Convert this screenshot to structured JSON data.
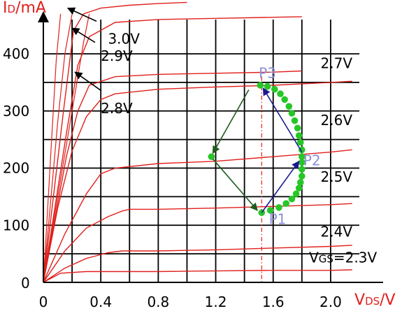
{
  "chart_data": {
    "type": "line",
    "xlabel": "VDS/V",
    "ylabel": "ID/mA",
    "x_ticks": [
      "0",
      "0.4",
      "0.8",
      "1.2",
      "1.6",
      "2.0"
    ],
    "y_ticks": [
      "0",
      "100",
      "200",
      "300",
      "400"
    ],
    "xlim": [
      0,
      2.2
    ],
    "ylim": [
      0,
      460
    ],
    "grid": true,
    "series": [
      {
        "name": "VGS=2.3V",
        "label_xy": [
          1.85,
          35
        ],
        "x": [
          0,
          0.12,
          0.3,
          0.5,
          0.8,
          1.2,
          1.6,
          2.0,
          2.15
        ],
        "y": [
          0,
          16,
          19,
          19,
          19,
          20,
          21,
          21,
          22
        ]
      },
      {
        "name": "2.4V",
        "label_xy": [
          1.93,
          80
        ],
        "x": [
          0,
          0.15,
          0.3,
          0.45,
          0.55,
          0.6,
          0.8,
          1.2,
          1.6,
          2.0,
          2.15
        ],
        "y": [
          0,
          25,
          42,
          52,
          55,
          55,
          55,
          57,
          60,
          63,
          65
        ]
      },
      {
        "name": "2.5V",
        "label_xy": [
          1.93,
          176
        ],
        "x": [
          0,
          0.15,
          0.3,
          0.45,
          0.55,
          0.6,
          0.8,
          1.2,
          1.6,
          2.0,
          2.15
        ],
        "y": [
          0,
          55,
          95,
          115,
          125,
          128,
          128,
          130,
          133,
          136,
          138
        ]
      },
      {
        "name": "2.6V",
        "label_xy": [
          1.93,
          275
        ],
        "x": [
          0,
          0.15,
          0.3,
          0.4,
          0.5,
          0.8,
          1.2,
          1.6,
          2.0,
          2.15
        ],
        "y": [
          0,
          85,
          155,
          190,
          200,
          208,
          212,
          220,
          228,
          232
        ]
      },
      {
        "name": "2.7V",
        "label_xy": [
          1.93,
          375
        ],
        "x": [
          0,
          0.1,
          0.2,
          0.3,
          0.4,
          0.5,
          0.8,
          1.2,
          1.6,
          2.0,
          2.15
        ],
        "y": [
          0,
          130,
          230,
          290,
          320,
          330,
          338,
          342,
          345,
          350,
          352
        ]
      },
      {
        "name": "2.8V",
        "label_xy": [
          0.4,
          296
        ],
        "x": [
          0,
          0.08,
          0.16,
          0.24,
          0.32,
          0.5,
          0.8,
          1.2,
          1.6,
          1.8
        ],
        "y": [
          0,
          110,
          220,
          300,
          345,
          360,
          364,
          366,
          368,
          370
        ]
      },
      {
        "name": "2.9V",
        "label_xy": [
          0.4,
          388
        ],
        "x": [
          0,
          0.08,
          0.16,
          0.24,
          0.32,
          0.5,
          0.8,
          1.2,
          1.6,
          1.8
        ],
        "y": [
          0,
          130,
          260,
          380,
          430,
          455,
          460,
          462,
          464,
          465
        ]
      },
      {
        "name": "3.0V",
        "label_xy": [
          0.45,
          418
        ],
        "x": [
          0,
          0.07,
          0.14,
          0.21,
          0.28,
          0.4,
          0.6,
          0.8,
          1.0
        ],
        "y": [
          0,
          150,
          300,
          440,
          470,
          480,
          485,
          488,
          490
        ]
      }
    ],
    "extra_red_lines": [
      {
        "x": [
          0,
          0.1,
          0.2,
          0.28,
          0.32
        ],
        "y": [
          0,
          150,
          300,
          420,
          470
        ]
      },
      {
        "x": [
          0,
          0.05,
          0.1,
          0.15,
          0.2
        ],
        "y": [
          0,
          140,
          280,
          400,
          470
        ]
      },
      {
        "x": [
          0,
          0.03,
          0.06,
          0.09,
          0.12
        ],
        "y": [
          0,
          130,
          260,
          390,
          470
        ]
      }
    ],
    "load_line_points": [
      [
        1.52,
        122
      ],
      [
        1.58,
        126
      ],
      [
        1.64,
        131
      ],
      [
        1.69,
        138
      ],
      [
        1.73,
        146
      ],
      [
        1.76,
        155
      ],
      [
        1.78,
        165
      ],
      [
        1.79,
        175
      ],
      [
        1.8,
        186
      ],
      [
        1.8,
        198
      ],
      [
        1.8,
        210
      ],
      [
        1.8,
        220
      ],
      [
        1.8,
        232
      ],
      [
        1.79,
        245
      ],
      [
        1.78,
        257
      ],
      [
        1.77,
        270
      ],
      [
        1.75,
        283
      ],
      [
        1.73,
        296
      ],
      [
        1.71,
        308
      ],
      [
        1.68,
        320
      ],
      [
        1.65,
        330
      ],
      [
        1.61,
        338
      ],
      [
        1.56,
        343
      ],
      [
        1.51,
        345
      ],
      [
        1.17,
        220
      ]
    ],
    "quiescent_vds": 1.52,
    "points": [
      {
        "name": "P1",
        "x": 1.52,
        "y": 122,
        "label_xy": [
          1.57,
          102
        ]
      },
      {
        "name": "P2",
        "x": 1.8,
        "y": 220,
        "label_xy": [
          1.81,
          205
        ]
      },
      {
        "name": "P3",
        "x": 1.51,
        "y": 345,
        "label_xy": [
          1.5,
          358
        ]
      }
    ],
    "arrows": [
      {
        "from": [
          1.52,
          122
        ],
        "to": [
          1.78,
          212
        ],
        "color": "#1a1a8f"
      },
      {
        "from": [
          1.8,
          228
        ],
        "to": [
          1.53,
          340
        ],
        "color": "#1a1a8f"
      },
      {
        "from": [
          1.43,
          337
        ],
        "to": [
          1.18,
          226
        ],
        "color": "#1e5a1e"
      },
      {
        "from": [
          1.18,
          216
        ],
        "to": [
          1.49,
          126
        ],
        "color": "#1e5a1e"
      },
      {
        "from": [
          0.37,
          457
        ],
        "to": [
          0.17,
          480
        ],
        "color": "#000000"
      },
      {
        "from": [
          0.36,
          420
        ],
        "to": [
          0.2,
          445
        ],
        "color": "#000000"
      },
      {
        "from": [
          0.4,
          336
        ],
        "to": [
          0.22,
          368
        ],
        "color": "#000000"
      }
    ],
    "colors": {
      "curve": "#e0201c",
      "grid": "#000000",
      "axis_title": "#e0201c",
      "point_dot": "#27c627",
      "point_label": "#8a8fd8",
      "arrow_blue": "#1a1a8f",
      "arrow_green": "#1e5a1e"
    }
  }
}
